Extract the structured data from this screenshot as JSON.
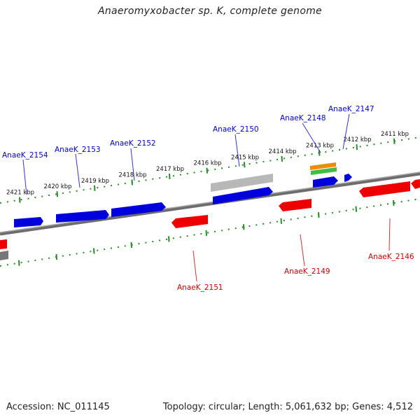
{
  "header": {
    "title": "Anaeromyxobacter sp. K, complete genome"
  },
  "footer": {
    "accession": "Accession: NC_011145",
    "stats": "Topology: circular; Length: 5,061,632 bp; Genes: 4,512"
  },
  "colors": {
    "forward_gene": "#0000dd",
    "reverse_gene": "#ee0000",
    "backbone": "#808080",
    "ticks": "#2a8a2a",
    "forward_label": "#0000cc",
    "reverse_label": "#cc0000",
    "rrna": "#f08c00",
    "trna": "#44bb44",
    "other": "#b5b5b5"
  },
  "scale": {
    "ticks": [
      {
        "label": "2421 kbp",
        "pos": 2421
      },
      {
        "label": "2420 kbp",
        "pos": 2420
      },
      {
        "label": "2419 kbp",
        "pos": 2419
      },
      {
        "label": "2418 kbp",
        "pos": 2418
      },
      {
        "label": "2417 kbp",
        "pos": 2417
      },
      {
        "label": "2416 kbp",
        "pos": 2416
      },
      {
        "label": "2415 kbp",
        "pos": 2415
      },
      {
        "label": "2414 kbp",
        "pos": 2414
      },
      {
        "label": "2413 kbp",
        "pos": 2413
      },
      {
        "label": "2412 kbp",
        "pos": 2412
      },
      {
        "label": "2411 kbp",
        "pos": 2411
      }
    ]
  },
  "genes": {
    "forward": [
      {
        "label": "AnaeK_2154"
      },
      {
        "label": "AnaeK_2153"
      },
      {
        "label": "AnaeK_2152"
      },
      {
        "label": "AnaeK_2150"
      },
      {
        "label": "AnaeK_2148"
      },
      {
        "label": "AnaeK_2147"
      }
    ],
    "reverse": [
      {
        "label": "AnaeK_2151"
      },
      {
        "label": "AnaeK_2149"
      },
      {
        "label": "AnaeK_2146"
      }
    ]
  }
}
